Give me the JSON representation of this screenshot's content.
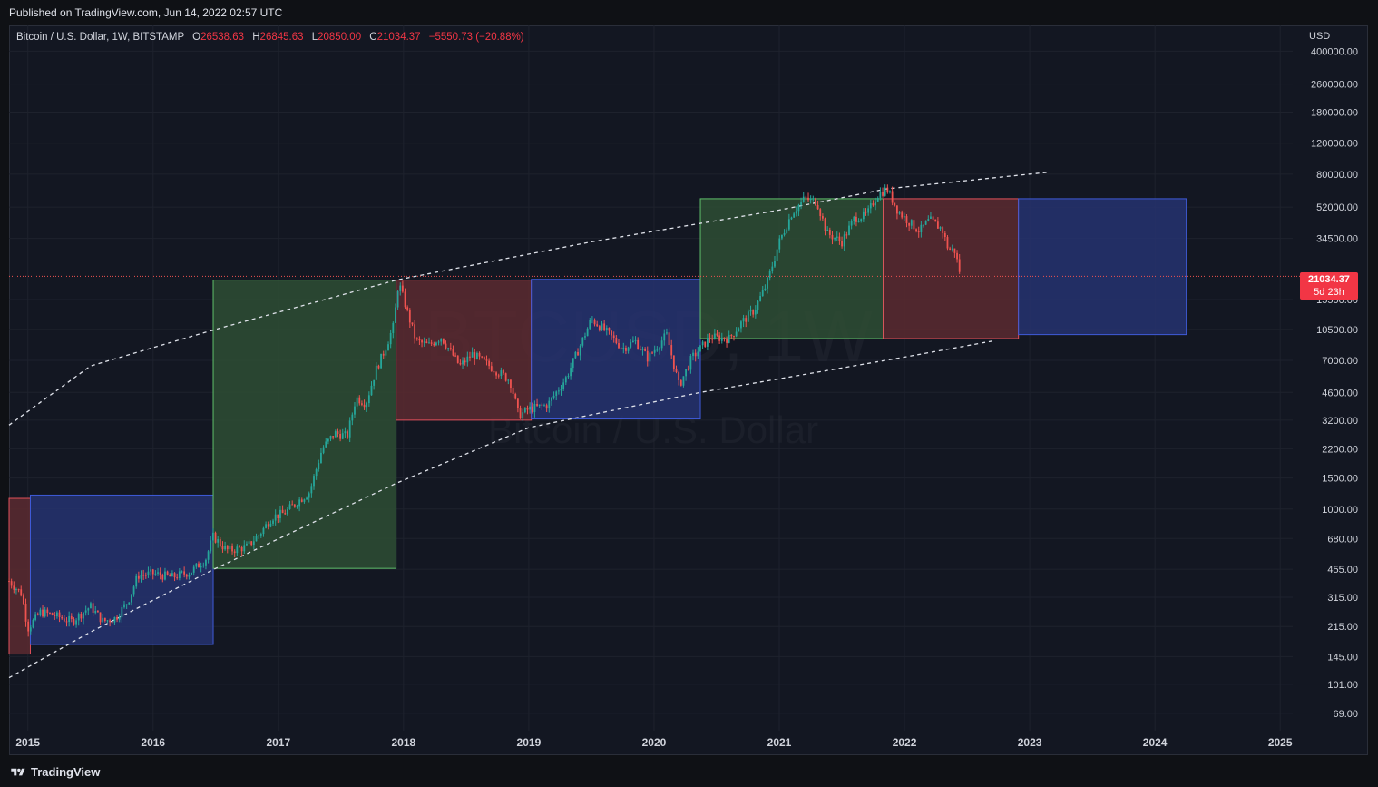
{
  "header": {
    "published": "Published on TradingView.com, Jun 14, 2022 02:57 UTC"
  },
  "legend": {
    "symbol": "Bitcoin / U.S. Dollar, 1W, BITSTAMP",
    "o_label": "O",
    "o_value": "26538.63",
    "h_label": "H",
    "h_value": "26845.63",
    "l_label": "L",
    "l_value": "20850.00",
    "c_label": "C",
    "c_value": "21034.37",
    "change": "−5550.73 (−20.88%)"
  },
  "watermark": {
    "symbol": "BTCUSD, 1W",
    "name": "Bitcoin / U.S. Dollar"
  },
  "price_tag": {
    "price": "21034.37",
    "countdown": "5d 23h"
  },
  "axis_currency": "USD",
  "footer": {
    "brand": "TradingView"
  },
  "colors": {
    "bg": "#131722",
    "up": "#26a69a",
    "down": "#ef5350",
    "green_box": "#2e4d34",
    "red_box": "#5c2a30",
    "blue_box": "#263270"
  },
  "chart_data": {
    "type": "candlestick",
    "title": "Bitcoin / U.S. Dollar, 1W, BITSTAMP",
    "y_scale": "log",
    "ylim": [
      55,
      560000
    ],
    "xlim": [
      2014.85,
      2025.1
    ],
    "y_ticks": [
      "400000.00",
      "260000.00",
      "180000.00",
      "120000.00",
      "80000.00",
      "52000.00",
      "34500.00",
      "15500.00",
      "10500.00",
      "7000.00",
      "4600.00",
      "3200.00",
      "2200.00",
      "1500.00",
      "1000.00",
      "680.00",
      "455.00",
      "315.00",
      "215.00",
      "145.00",
      "101.00",
      "69.00"
    ],
    "x_ticks": [
      "2015",
      "2016",
      "2017",
      "2018",
      "2019",
      "2020",
      "2021",
      "2022",
      "2023",
      "2024",
      "2025"
    ],
    "last_price": 21034.37,
    "price_path": [
      [
        2014.85,
        390
      ],
      [
        2014.95,
        330
      ],
      [
        2015.0,
        210
      ],
      [
        2015.1,
        260
      ],
      [
        2015.2,
        250
      ],
      [
        2015.35,
        230
      ],
      [
        2015.5,
        280
      ],
      [
        2015.6,
        230
      ],
      [
        2015.7,
        240
      ],
      [
        2015.8,
        300
      ],
      [
        2015.88,
        420
      ],
      [
        2016.0,
        430
      ],
      [
        2016.15,
        410
      ],
      [
        2016.3,
        440
      ],
      [
        2016.42,
        520
      ],
      [
        2016.48,
        700
      ],
      [
        2016.55,
        620
      ],
      [
        2016.6,
        580
      ],
      [
        2016.75,
        610
      ],
      [
        2016.85,
        720
      ],
      [
        2016.95,
        900
      ],
      [
        2017.05,
        950
      ],
      [
        2017.15,
        1100
      ],
      [
        2017.25,
        1250
      ],
      [
        2017.35,
        2200
      ],
      [
        2017.45,
        2700
      ],
      [
        2017.55,
        2600
      ],
      [
        2017.62,
        4300
      ],
      [
        2017.7,
        4000
      ],
      [
        2017.78,
        6200
      ],
      [
        2017.85,
        8000
      ],
      [
        2017.92,
        11000
      ],
      [
        2017.96,
        19500
      ],
      [
        2018.02,
        14000
      ],
      [
        2018.1,
        9000
      ],
      [
        2018.2,
        8500
      ],
      [
        2018.3,
        9500
      ],
      [
        2018.45,
        6500
      ],
      [
        2018.55,
        7600
      ],
      [
        2018.7,
        6400
      ],
      [
        2018.85,
        5400
      ],
      [
        2018.92,
        3400
      ],
      [
        2019.0,
        3700
      ],
      [
        2019.15,
        3900
      ],
      [
        2019.3,
        5600
      ],
      [
        2019.42,
        8800
      ],
      [
        2019.5,
        12000
      ],
      [
        2019.6,
        10500
      ],
      [
        2019.75,
        8200
      ],
      [
        2019.85,
        9000
      ],
      [
        2019.95,
        7200
      ],
      [
        2020.1,
        9800
      ],
      [
        2020.2,
        5000
      ],
      [
        2020.3,
        7200
      ],
      [
        2020.45,
        9500
      ],
      [
        2020.6,
        9300
      ],
      [
        2020.7,
        11500
      ],
      [
        2020.8,
        13500
      ],
      [
        2020.9,
        19000
      ],
      [
        2021.0,
        33000
      ],
      [
        2021.1,
        48000
      ],
      [
        2021.2,
        58000
      ],
      [
        2021.3,
        56000
      ],
      [
        2021.38,
        37000
      ],
      [
        2021.5,
        33000
      ],
      [
        2021.6,
        45000
      ],
      [
        2021.7,
        47000
      ],
      [
        2021.78,
        61000
      ],
      [
        2021.86,
        66000
      ],
      [
        2021.95,
        49000
      ],
      [
        2022.05,
        42000
      ],
      [
        2022.12,
        38000
      ],
      [
        2022.2,
        44000
      ],
      [
        2022.3,
        39000
      ],
      [
        2022.35,
        30000
      ],
      [
        2022.4,
        29500
      ],
      [
        2022.45,
        21034
      ]
    ],
    "boxes": [
      {
        "color": "red",
        "x": [
          2014.85,
          2015.02
        ],
        "y": [
          150,
          1150
        ]
      },
      {
        "color": "blue",
        "x": [
          2015.02,
          2016.48
        ],
        "y": [
          170,
          1200
        ]
      },
      {
        "color": "green",
        "x": [
          2016.48,
          2017.94
        ],
        "y": [
          460,
          20000
        ]
      },
      {
        "color": "red",
        "x": [
          2017.94,
          2019.02
        ],
        "y": [
          3200,
          20000
        ]
      },
      {
        "color": "blue",
        "x": [
          2019.02,
          2020.37
        ],
        "y": [
          3250,
          20200
        ]
      },
      {
        "color": "green",
        "x": [
          2020.37,
          2021.83
        ],
        "y": [
          9300,
          58000
        ]
      },
      {
        "color": "red",
        "x": [
          2021.83,
          2022.91
        ],
        "y": [
          9300,
          58000
        ]
      },
      {
        "color": "blue",
        "x": [
          2022.91,
          2024.25
        ],
        "y": [
          9800,
          58000
        ]
      }
    ],
    "upper_curve": [
      [
        2014.85,
        3000
      ],
      [
        2015.5,
        6500
      ],
      [
        2016.5,
        10500
      ],
      [
        2017.94,
        20000
      ],
      [
        2019.5,
        33000
      ],
      [
        2021.0,
        50000
      ],
      [
        2021.86,
        66000
      ],
      [
        2023.0,
        80000
      ],
      [
        2023.15,
        82000
      ]
    ],
    "lower_curve": [
      [
        2014.85,
        110
      ],
      [
        2015.5,
        200
      ],
      [
        2016.5,
        460
      ],
      [
        2017.94,
        1400
      ],
      [
        2019.0,
        2900
      ],
      [
        2020.37,
        4600
      ],
      [
        2021.0,
        5500
      ],
      [
        2022.0,
        7300
      ],
      [
        2022.7,
        9000
      ]
    ]
  }
}
